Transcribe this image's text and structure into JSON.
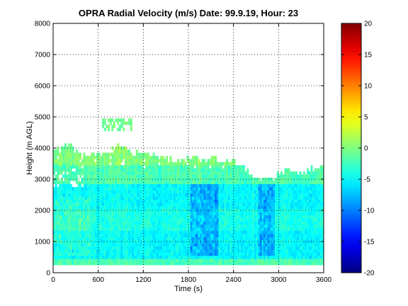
{
  "chart_data": {
    "type": "heatmap",
    "title": "OPRA Radial Velocity (m/s)  Date: 99.9.19, Hour: 23",
    "xlabel": "Time (s)",
    "ylabel": "Height (m AGL)",
    "xlim": [
      0,
      3600
    ],
    "ylim": [
      0,
      8000
    ],
    "x_ticks": [
      "0",
      "600",
      "1200",
      "1800",
      "2400",
      "3000",
      "3600"
    ],
    "y_ticks": [
      "0",
      "1000",
      "2000",
      "3000",
      "4000",
      "5000",
      "6000",
      "7000",
      "8000"
    ],
    "grid": true,
    "colorbar": {
      "colormap": "jet",
      "range": [
        -20,
        20
      ],
      "ticks": [
        "-20",
        "-15",
        "-10",
        "-5",
        "0",
        "5",
        "10",
        "15",
        "20"
      ]
    },
    "data_extent": {
      "height_min": 250,
      "height_max_typical": 3700,
      "time_min": 0,
      "time_max": 3600
    },
    "echo_top_profile": {
      "time": [
        0,
        100,
        200,
        280,
        400,
        600,
        800,
        900,
        1000,
        1200,
        1400,
        1600,
        1800,
        2000,
        2200,
        2400,
        2600,
        2750,
        2900,
        3000,
        3100,
        3200,
        3300,
        3400,
        3500,
        3600
      ],
      "height": [
        3900,
        4000,
        4150,
        3850,
        3700,
        3750,
        3900,
        4100,
        3900,
        3800,
        3650,
        3550,
        3600,
        3550,
        3600,
        3500,
        3150,
        2950,
        3000,
        3100,
        3250,
        3300,
        3150,
        3250,
        3350,
        3450
      ]
    },
    "isolated_echo_band": {
      "time": [
        600,
        1050
      ],
      "height": [
        4550,
        4950
      ]
    },
    "velocity_layers": [
      {
        "height": [
          250,
          400
        ],
        "value": -2
      },
      {
        "height": [
          400,
          1300
        ],
        "value": -5
      },
      {
        "height": [
          1300,
          2000
        ],
        "value": -4
      },
      {
        "height": [
          2000,
          2800
        ],
        "value": -5
      },
      {
        "height": [
          2800,
          3400
        ],
        "value": -2
      },
      {
        "height": [
          3400,
          4200
        ],
        "value": 0
      }
    ]
  }
}
